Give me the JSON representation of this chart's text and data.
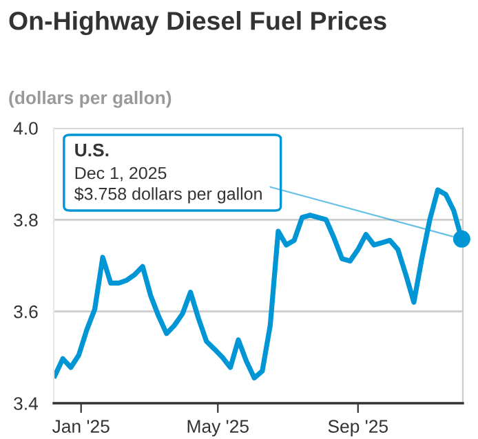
{
  "chart_data": {
    "type": "line",
    "title": "On-Highway Diesel Fuel Prices",
    "subtitle": "(dollars per gallon)",
    "x": [
      "2024-12-09",
      "2024-12-16",
      "2024-12-23",
      "2024-12-30",
      "2025-01-06",
      "2025-01-13",
      "2025-01-20",
      "2025-01-27",
      "2025-02-03",
      "2025-02-10",
      "2025-02-17",
      "2025-02-24",
      "2025-03-03",
      "2025-03-10",
      "2025-03-17",
      "2025-03-24",
      "2025-03-31",
      "2025-04-07",
      "2025-04-14",
      "2025-04-21",
      "2025-04-28",
      "2025-05-05",
      "2025-05-12",
      "2025-05-19",
      "2025-05-26",
      "2025-06-02",
      "2025-06-09",
      "2025-06-16",
      "2025-06-23",
      "2025-06-30",
      "2025-07-07",
      "2025-07-14",
      "2025-07-21",
      "2025-07-28",
      "2025-08-04",
      "2025-08-11",
      "2025-08-18",
      "2025-08-25",
      "2025-09-01",
      "2025-09-08",
      "2025-09-15",
      "2025-09-22",
      "2025-09-29",
      "2025-10-06",
      "2025-10-13",
      "2025-10-20",
      "2025-10-27",
      "2025-11-03",
      "2025-11-10",
      "2025-11-17",
      "2025-11-24",
      "2025-12-01"
    ],
    "series": [
      {
        "name": "U.S.",
        "color": "#0096d6",
        "values": [
          3.46,
          3.497,
          3.478,
          3.505,
          3.56,
          3.605,
          3.718,
          3.662,
          3.662,
          3.668,
          3.68,
          3.698,
          3.635,
          3.59,
          3.552,
          3.57,
          3.595,
          3.642,
          3.585,
          3.535,
          3.518,
          3.5,
          3.478,
          3.538,
          3.492,
          3.455,
          3.47,
          3.57,
          3.775,
          3.745,
          3.755,
          3.805,
          3.81,
          3.805,
          3.8,
          3.76,
          3.715,
          3.71,
          3.735,
          3.768,
          3.745,
          3.75,
          3.755,
          3.735,
          3.68,
          3.62,
          3.715,
          3.8,
          3.865,
          3.855,
          3.82,
          3.758
        ]
      }
    ],
    "xlim": [
      "2024-12-08",
      "2025-12-02"
    ],
    "xticks": [
      {
        "value": "2025-01-01",
        "label": "Jan '25"
      },
      {
        "value": "2025-05-01",
        "label": "May '25"
      },
      {
        "value": "2025-09-01",
        "label": "Sep '25"
      }
    ],
    "ylim": [
      3.4,
      4.0
    ],
    "yticks": [
      {
        "value": 3.4,
        "label": "3.4"
      },
      {
        "value": 3.6,
        "label": "3.6"
      },
      {
        "value": 3.8,
        "label": "3.8"
      },
      {
        "value": 4.0,
        "label": "4.0"
      }
    ],
    "grid": "y",
    "legend": false,
    "marker": "none",
    "line_style": "solid",
    "annotations": [
      {
        "text": "Dec 1, 2025\n$3.758 dollars per gallon",
        "x": "2025-12-01",
        "y": 3.758
      }
    ]
  }
}
